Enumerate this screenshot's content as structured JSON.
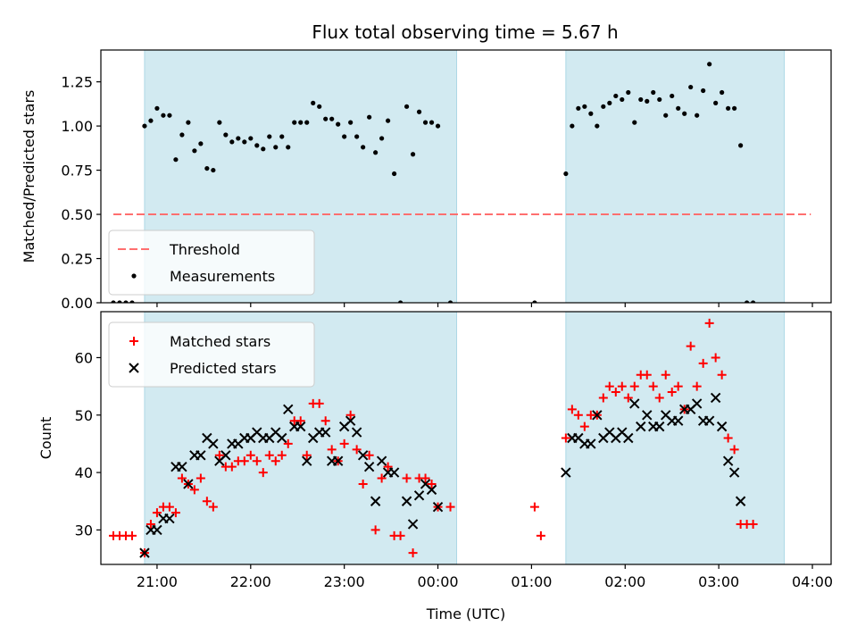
{
  "title": "Flux total observing time = 5.67 h",
  "colors": {
    "shade": "#add8e6",
    "matched": "#ff0000",
    "predicted": "#000000",
    "threshold": "#ff6f6f",
    "measure": "#000000"
  },
  "chart_data": [
    {
      "type": "scatter",
      "ylabel": "Matched/Predicted stars",
      "xlabel": "",
      "xlim": [
        "20:24",
        "04:12"
      ],
      "ylim": [
        0,
        1.43
      ],
      "grid": false,
      "legend_position": "lower-left",
      "yticks": [
        0.0,
        0.25,
        0.5,
        0.75,
        1.0,
        1.25
      ],
      "ytick_labels": [
        "0.00",
        "0.25",
        "0.50",
        "0.75",
        "1.00",
        "1.25"
      ],
      "observing_windows": [
        [
          "20:52",
          "00:12"
        ],
        [
          "01:22",
          "03:42"
        ]
      ],
      "threshold": {
        "name": "Threshold",
        "y": 0.5,
        "x_range": [
          "20:32",
          "03:59"
        ]
      },
      "series": [
        {
          "name": "Measurements",
          "points": [
            [
              "20:32",
              0.0
            ],
            [
              "20:36",
              0.0
            ],
            [
              "20:40",
              0.0
            ],
            [
              "20:44",
              0.0
            ],
            [
              "20:52",
              1.0
            ],
            [
              "20:56",
              1.03
            ],
            [
              "21:00",
              1.1
            ],
            [
              "21:04",
              1.06
            ],
            [
              "21:08",
              1.06
            ],
            [
              "21:12",
              0.81
            ],
            [
              "21:16",
              0.95
            ],
            [
              "21:20",
              1.02
            ],
            [
              "21:24",
              0.86
            ],
            [
              "21:28",
              0.9
            ],
            [
              "21:32",
              0.76
            ],
            [
              "21:36",
              0.75
            ],
            [
              "21:40",
              1.02
            ],
            [
              "21:44",
              0.95
            ],
            [
              "21:48",
              0.91
            ],
            [
              "21:52",
              0.93
            ],
            [
              "21:56",
              0.91
            ],
            [
              "22:00",
              0.93
            ],
            [
              "22:04",
              0.89
            ],
            [
              "22:08",
              0.87
            ],
            [
              "22:12",
              0.94
            ],
            [
              "22:16",
              0.88
            ],
            [
              "22:20",
              0.94
            ],
            [
              "22:24",
              0.88
            ],
            [
              "22:28",
              1.02
            ],
            [
              "22:32",
              1.02
            ],
            [
              "22:36",
              1.02
            ],
            [
              "22:40",
              1.13
            ],
            [
              "22:44",
              1.11
            ],
            [
              "22:48",
              1.04
            ],
            [
              "22:52",
              1.04
            ],
            [
              "22:56",
              1.01
            ],
            [
              "23:00",
              0.94
            ],
            [
              "23:04",
              1.02
            ],
            [
              "23:08",
              0.94
            ],
            [
              "23:12",
              0.88
            ],
            [
              "23:16",
              1.05
            ],
            [
              "23:20",
              0.85
            ],
            [
              "23:24",
              0.93
            ],
            [
              "23:28",
              1.03
            ],
            [
              "23:32",
              0.73
            ],
            [
              "23:36",
              0.0
            ],
            [
              "23:40",
              1.11
            ],
            [
              "23:44",
              0.84
            ],
            [
              "23:48",
              1.08
            ],
            [
              "23:52",
              1.02
            ],
            [
              "23:56",
              1.02
            ],
            [
              "00:00",
              1.0
            ],
            [
              "00:08",
              0.0
            ],
            [
              "01:02",
              0.0
            ],
            [
              "01:22",
              0.73
            ],
            [
              "01:26",
              1.0
            ],
            [
              "01:30",
              1.1
            ],
            [
              "01:34",
              1.11
            ],
            [
              "01:38",
              1.07
            ],
            [
              "01:42",
              1.0
            ],
            [
              "01:46",
              1.11
            ],
            [
              "01:50",
              1.13
            ],
            [
              "01:54",
              1.17
            ],
            [
              "01:58",
              1.15
            ],
            [
              "02:02",
              1.19
            ],
            [
              "02:06",
              1.02
            ],
            [
              "02:10",
              1.15
            ],
            [
              "02:14",
              1.14
            ],
            [
              "02:18",
              1.19
            ],
            [
              "02:22",
              1.15
            ],
            [
              "02:26",
              1.06
            ],
            [
              "02:30",
              1.17
            ],
            [
              "02:34",
              1.1
            ],
            [
              "02:38",
              1.07
            ],
            [
              "02:42",
              1.22
            ],
            [
              "02:46",
              1.06
            ],
            [
              "02:50",
              1.2
            ],
            [
              "02:54",
              1.35
            ],
            [
              "02:58",
              1.13
            ],
            [
              "03:02",
              1.19
            ],
            [
              "03:06",
              1.1
            ],
            [
              "03:10",
              1.1
            ],
            [
              "03:14",
              0.89
            ],
            [
              "03:18",
              0.0
            ],
            [
              "03:22",
              0.0
            ]
          ]
        }
      ]
    },
    {
      "type": "scatter",
      "ylabel": "Count",
      "xlabel": "Time (UTC)",
      "xlim": [
        "20:24",
        "04:12"
      ],
      "ylim": [
        24,
        68
      ],
      "grid": false,
      "legend_position": "upper-left",
      "yticks": [
        30,
        40,
        50,
        60
      ],
      "ytick_labels": [
        "30",
        "40",
        "50",
        "60"
      ],
      "xticks": [
        "21:00",
        "22:00",
        "23:00",
        "00:00",
        "01:00",
        "02:00",
        "03:00",
        "04:00"
      ],
      "observing_windows": [
        [
          "20:52",
          "00:12"
        ],
        [
          "01:22",
          "03:42"
        ]
      ],
      "series": [
        {
          "name": "Matched stars",
          "points": [
            [
              "20:32",
              29
            ],
            [
              "20:36",
              29
            ],
            [
              "20:40",
              29
            ],
            [
              "20:44",
              29
            ],
            [
              "20:52",
              26
            ],
            [
              "20:56",
              31
            ],
            [
              "21:00",
              33
            ],
            [
              "21:04",
              34
            ],
            [
              "21:08",
              34
            ],
            [
              "21:12",
              33
            ],
            [
              "21:16",
              39
            ],
            [
              "21:20",
              38
            ],
            [
              "21:24",
              37
            ],
            [
              "21:28",
              39
            ],
            [
              "21:32",
              35
            ],
            [
              "21:36",
              34
            ],
            [
              "21:40",
              43
            ],
            [
              "21:44",
              41
            ],
            [
              "21:48",
              41
            ],
            [
              "21:52",
              42
            ],
            [
              "21:56",
              42
            ],
            [
              "22:00",
              43
            ],
            [
              "22:04",
              42
            ],
            [
              "22:08",
              40
            ],
            [
              "22:12",
              43
            ],
            [
              "22:16",
              42
            ],
            [
              "22:20",
              43
            ],
            [
              "22:24",
              45
            ],
            [
              "22:28",
              49
            ],
            [
              "22:32",
              49
            ],
            [
              "22:36",
              43
            ],
            [
              "22:40",
              52
            ],
            [
              "22:44",
              52
            ],
            [
              "22:48",
              49
            ],
            [
              "22:52",
              44
            ],
            [
              "22:56",
              42
            ],
            [
              "23:00",
              45
            ],
            [
              "23:04",
              50
            ],
            [
              "23:08",
              44
            ],
            [
              "23:12",
              38
            ],
            [
              "23:16",
              43
            ],
            [
              "23:20",
              30
            ],
            [
              "23:24",
              39
            ],
            [
              "23:28",
              41
            ],
            [
              "23:32",
              29
            ],
            [
              "23:36",
              29
            ],
            [
              "23:40",
              39
            ],
            [
              "23:44",
              26
            ],
            [
              "23:48",
              39
            ],
            [
              "23:52",
              39
            ],
            [
              "23:56",
              38
            ],
            [
              "00:00",
              34
            ],
            [
              "00:08",
              34
            ],
            [
              "01:02",
              34
            ],
            [
              "01:06",
              29
            ],
            [
              "01:22",
              46
            ],
            [
              "01:26",
              51
            ],
            [
              "01:30",
              50
            ],
            [
              "01:34",
              48
            ],
            [
              "01:38",
              50
            ],
            [
              "01:42",
              50
            ],
            [
              "01:46",
              53
            ],
            [
              "01:50",
              55
            ],
            [
              "01:54",
              54
            ],
            [
              "01:58",
              55
            ],
            [
              "02:02",
              53
            ],
            [
              "02:06",
              55
            ],
            [
              "02:10",
              57
            ],
            [
              "02:14",
              57
            ],
            [
              "02:18",
              55
            ],
            [
              "02:22",
              53
            ],
            [
              "02:26",
              57
            ],
            [
              "02:30",
              54
            ],
            [
              "02:34",
              55
            ],
            [
              "02:38",
              51
            ],
            [
              "02:42",
              62
            ],
            [
              "02:46",
              55
            ],
            [
              "02:50",
              59
            ],
            [
              "02:54",
              66
            ],
            [
              "02:58",
              60
            ],
            [
              "03:02",
              57
            ],
            [
              "03:06",
              46
            ],
            [
              "03:10",
              44
            ],
            [
              "03:14",
              31
            ],
            [
              "03:18",
              31
            ],
            [
              "03:22",
              31
            ]
          ]
        },
        {
          "name": "Predicted stars",
          "points": [
            [
              "20:52",
              26
            ],
            [
              "20:56",
              30
            ],
            [
              "21:00",
              30
            ],
            [
              "21:04",
              32
            ],
            [
              "21:08",
              32
            ],
            [
              "21:12",
              41
            ],
            [
              "21:16",
              41
            ],
            [
              "21:20",
              38
            ],
            [
              "21:24",
              43
            ],
            [
              "21:28",
              43
            ],
            [
              "21:32",
              46
            ],
            [
              "21:36",
              45
            ],
            [
              "21:40",
              42
            ],
            [
              "21:44",
              43
            ],
            [
              "21:48",
              45
            ],
            [
              "21:52",
              45
            ],
            [
              "21:56",
              46
            ],
            [
              "22:00",
              46
            ],
            [
              "22:04",
              47
            ],
            [
              "22:08",
              46
            ],
            [
              "22:12",
              46
            ],
            [
              "22:16",
              47
            ],
            [
              "22:20",
              46
            ],
            [
              "22:24",
              51
            ],
            [
              "22:28",
              48
            ],
            [
              "22:32",
              48
            ],
            [
              "22:36",
              42
            ],
            [
              "22:40",
              46
            ],
            [
              "22:44",
              47
            ],
            [
              "22:48",
              47
            ],
            [
              "22:52",
              42
            ],
            [
              "22:56",
              42
            ],
            [
              "23:00",
              48
            ],
            [
              "23:04",
              49
            ],
            [
              "23:08",
              47
            ],
            [
              "23:12",
              43
            ],
            [
              "23:16",
              41
            ],
            [
              "23:20",
              35
            ],
            [
              "23:24",
              42
            ],
            [
              "23:28",
              40
            ],
            [
              "23:32",
              40
            ],
            [
              "23:40",
              35
            ],
            [
              "23:44",
              31
            ],
            [
              "23:48",
              36
            ],
            [
              "23:52",
              38
            ],
            [
              "23:56",
              37
            ],
            [
              "00:00",
              34
            ],
            [
              "01:22",
              40
            ],
            [
              "01:26",
              46
            ],
            [
              "01:30",
              46
            ],
            [
              "01:34",
              45
            ],
            [
              "01:38",
              45
            ],
            [
              "01:42",
              50
            ],
            [
              "01:46",
              46
            ],
            [
              "01:50",
              47
            ],
            [
              "01:54",
              46
            ],
            [
              "01:58",
              47
            ],
            [
              "02:02",
              46
            ],
            [
              "02:06",
              52
            ],
            [
              "02:10",
              48
            ],
            [
              "02:14",
              50
            ],
            [
              "02:18",
              48
            ],
            [
              "02:22",
              48
            ],
            [
              "02:26",
              50
            ],
            [
              "02:30",
              49
            ],
            [
              "02:34",
              49
            ],
            [
              "02:38",
              51
            ],
            [
              "02:42",
              51
            ],
            [
              "02:46",
              52
            ],
            [
              "02:50",
              49
            ],
            [
              "02:54",
              49
            ],
            [
              "02:58",
              53
            ],
            [
              "03:02",
              48
            ],
            [
              "03:06",
              42
            ],
            [
              "03:10",
              40
            ],
            [
              "03:14",
              35
            ]
          ]
        }
      ]
    }
  ]
}
